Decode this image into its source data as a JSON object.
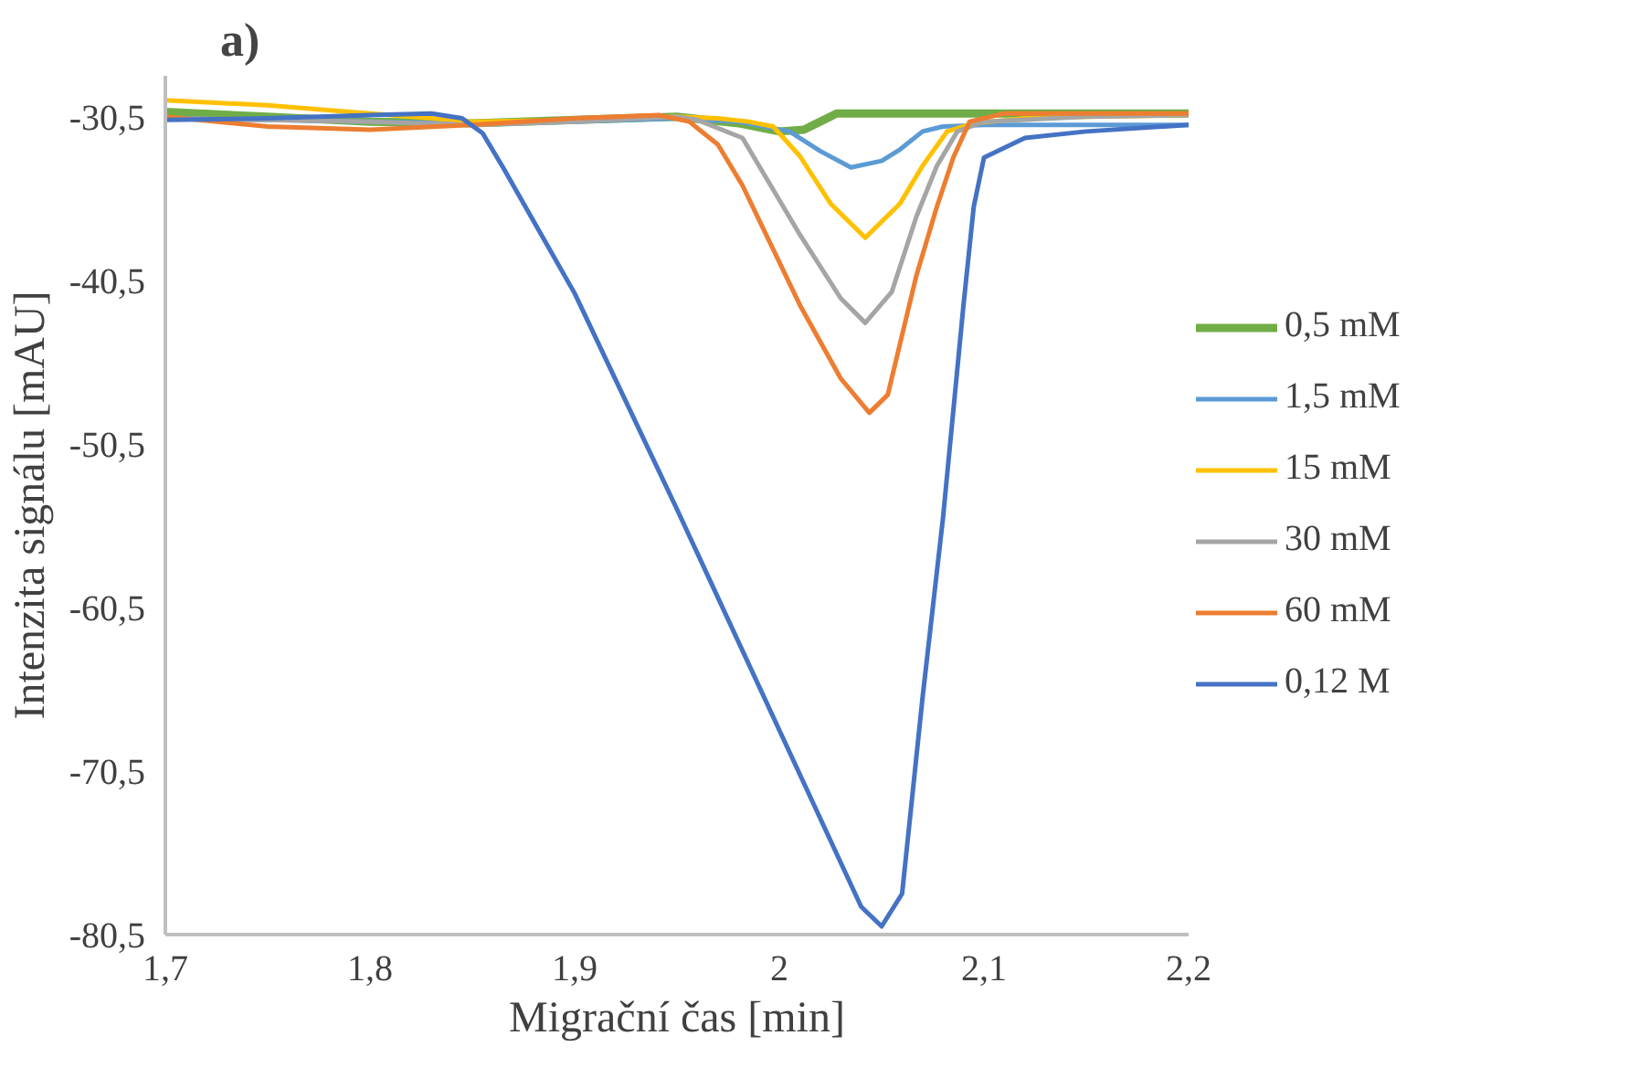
{
  "chart_data": {
    "type": "line",
    "title": "a)",
    "xlabel": "Migrační čas [min]",
    "ylabel": "Intenzita signálu [mAU]",
    "xlim": [
      1.7,
      2.2
    ],
    "xticks": [
      {
        "value": 1.7,
        "label": "1,7"
      },
      {
        "value": 1.8,
        "label": "1,8"
      },
      {
        "value": 1.9,
        "label": "1,9"
      },
      {
        "value": 2.0,
        "label": "2"
      },
      {
        "value": 2.1,
        "label": "2,1"
      },
      {
        "value": 2.2,
        "label": "2,2"
      }
    ],
    "ylim": [
      -80.5,
      -28
    ],
    "yticks": [
      {
        "value": -80.5,
        "label": "-80,5"
      },
      {
        "value": -70.5,
        "label": "-70,5"
      },
      {
        "value": -60.5,
        "label": "-60,5"
      },
      {
        "value": -50.5,
        "label": "-50,5"
      },
      {
        "value": -40.5,
        "label": "-40,5"
      },
      {
        "value": -30.5,
        "label": "-30,5"
      }
    ],
    "grid": false,
    "legend": "right",
    "line_style": "solid",
    "marker": "none",
    "series": [
      {
        "name": "0,5 mM",
        "color": "#70ad47",
        "x": [
          1.7,
          1.75,
          1.8,
          1.85,
          1.9,
          1.95,
          1.98,
          2.0,
          2.012,
          2.02,
          2.028,
          2.05,
          2.1,
          2.15,
          2.2
        ],
        "values": [
          -30.2,
          -30.5,
          -30.8,
          -30.9,
          -30.7,
          -30.5,
          -30.9,
          -31.4,
          -31.3,
          -30.8,
          -30.3,
          -30.3,
          -30.3,
          -30.3,
          -30.3
        ]
      },
      {
        "name": "1,5 mM",
        "color": "#5b9bd5",
        "x": [
          1.7,
          1.75,
          1.8,
          1.85,
          1.9,
          1.95,
          1.98,
          2.005,
          2.02,
          2.035,
          2.05,
          2.059,
          2.07,
          2.08,
          2.1,
          2.15,
          2.2
        ],
        "values": [
          -30.6,
          -30.7,
          -30.8,
          -30.9,
          -30.8,
          -30.6,
          -30.8,
          -31.4,
          -32.6,
          -33.6,
          -33.2,
          -32.5,
          -31.4,
          -31.1,
          -31.0,
          -31.0,
          -31.0
        ]
      },
      {
        "name": "15 mM",
        "color": "#ffc000",
        "x": [
          1.7,
          1.75,
          1.8,
          1.85,
          1.9,
          1.95,
          1.97,
          1.985,
          1.997,
          2.01,
          2.025,
          2.042,
          2.059,
          2.07,
          2.082,
          2.095,
          2.12,
          2.15,
          2.2
        ],
        "values": [
          -29.5,
          -29.8,
          -30.3,
          -30.8,
          -30.7,
          -30.5,
          -30.6,
          -30.8,
          -31.1,
          -32.9,
          -35.8,
          -37.9,
          -35.8,
          -33.5,
          -31.4,
          -30.9,
          -30.6,
          -30.5,
          -30.4
        ]
      },
      {
        "name": "30 mM",
        "color": "#a5a5a5",
        "x": [
          1.7,
          1.75,
          1.8,
          1.85,
          1.9,
          1.95,
          1.96,
          1.982,
          2.01,
          2.03,
          2.042,
          2.055,
          2.067,
          2.077,
          2.087,
          2.1,
          2.15,
          2.2
        ],
        "values": [
          -30.6,
          -30.7,
          -30.8,
          -31.0,
          -30.8,
          -30.5,
          -30.7,
          -31.8,
          -37.7,
          -41.6,
          -43.1,
          -41.2,
          -36.6,
          -33.5,
          -31.4,
          -30.8,
          -30.5,
          -30.4
        ]
      },
      {
        "name": "60 mM",
        "color": "#ed7d31",
        "x": [
          1.7,
          1.75,
          1.8,
          1.85,
          1.9,
          1.941,
          1.956,
          1.97,
          1.982,
          2.01,
          2.03,
          2.044,
          2.053,
          2.067,
          2.077,
          2.085,
          2.093,
          2.11,
          2.15,
          2.2
        ],
        "values": [
          -30.5,
          -31.1,
          -31.3,
          -31.0,
          -30.6,
          -30.4,
          -30.8,
          -32.2,
          -34.7,
          -42.0,
          -46.5,
          -48.6,
          -47.5,
          -40.2,
          -36.0,
          -33.0,
          -30.8,
          -30.3,
          -30.3,
          -30.3
        ]
      },
      {
        "name": "0,12 M",
        "color": "#4472c4",
        "x": [
          1.7,
          1.75,
          1.8,
          1.83,
          1.845,
          1.855,
          1.865,
          1.9,
          1.95,
          2.0,
          2.04,
          2.05,
          2.06,
          2.07,
          2.08,
          2.09,
          2.095,
          2.1,
          2.12,
          2.15,
          2.2
        ],
        "values": [
          -30.7,
          -30.6,
          -30.4,
          -30.3,
          -30.6,
          -31.5,
          -33.6,
          -41.3,
          -54.5,
          -68.0,
          -78.8,
          -80.0,
          -78.0,
          -66.0,
          -55.0,
          -42.0,
          -36.0,
          -33.0,
          -31.8,
          -31.4,
          -31.0
        ]
      }
    ]
  }
}
